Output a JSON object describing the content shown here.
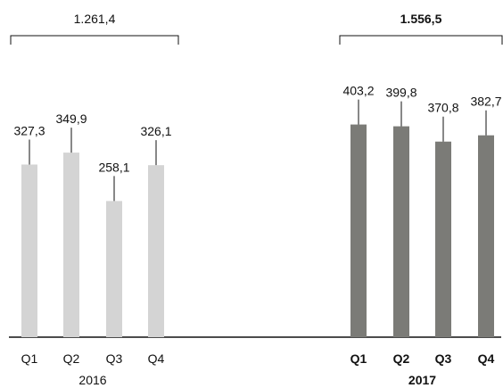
{
  "chart_data": {
    "type": "bar",
    "unit_format": "comma-decimal",
    "groups": [
      {
        "year": "2016",
        "total": "1.261,4",
        "categories": [
          "Q1",
          "Q2",
          "Q3",
          "Q4"
        ],
        "values": [
          327.3,
          349.9,
          258.1,
          326.1
        ],
        "labels": [
          "327,3",
          "349,9",
          "258,1",
          "326,1"
        ],
        "color": "#d4d4d4",
        "bold": false
      },
      {
        "year": "2017",
        "total": "1.556,5",
        "categories": [
          "Q1",
          "Q2",
          "Q3",
          "Q4"
        ],
        "values": [
          403.2,
          399.8,
          370.8,
          382.7
        ],
        "labels": [
          "403,2",
          "399,8",
          "370,8",
          "382,7"
        ],
        "color": "#7b7b77",
        "bold": true
      }
    ],
    "ylim": [
      0,
      450
    ],
    "grid": false,
    "legend": "none"
  }
}
